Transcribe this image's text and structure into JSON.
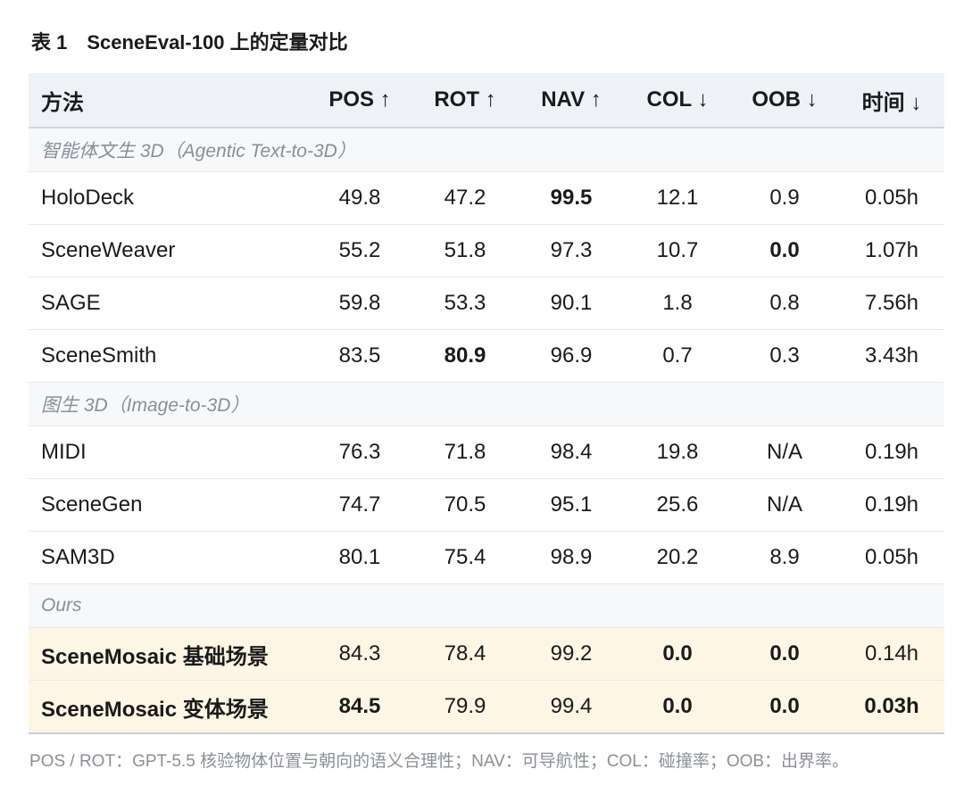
{
  "caption": "表 1　SceneEval-100 上的定量对比",
  "table": {
    "header": [
      "方法",
      "POS ↑",
      "ROT ↑",
      "NAV ↑",
      "COL ↓",
      "OOB ↓",
      "时间 ↓"
    ],
    "groups": [
      {
        "label": "智能体文生 3D（Agentic Text-to-3D）",
        "rows": [
          [
            "HoloDeck",
            "49.8",
            "47.2",
            "99.5",
            "12.1",
            "0.9",
            "0.05h"
          ],
          [
            "SceneWeaver",
            "55.2",
            "51.8",
            "97.3",
            "10.7",
            "0.0",
            "1.07h"
          ],
          [
            "SAGE",
            "59.8",
            "53.3",
            "90.1",
            "1.8",
            "0.8",
            "7.56h"
          ],
          [
            "SceneSmith",
            "83.5",
            "80.9",
            "96.9",
            "0.7",
            "0.3",
            "3.43h"
          ]
        ]
      },
      {
        "label": "图生 3D（Image-to-3D）",
        "rows": [
          [
            "MIDI",
            "76.3",
            "71.8",
            "98.4",
            "19.8",
            "N/A",
            "0.19h"
          ],
          [
            "SceneGen",
            "74.7",
            "70.5",
            "95.1",
            "25.6",
            "N/A",
            "0.19h"
          ],
          [
            "SAM3D",
            "80.1",
            "75.4",
            "98.9",
            "20.2",
            "8.9",
            "0.05h"
          ]
        ]
      },
      {
        "label": "Ours",
        "rows": [
          [
            "SceneMosaic 基础场景",
            "84.3",
            "78.4",
            "99.2",
            "0.0",
            "0.0",
            "0.14h"
          ],
          [
            "SceneMosaic 变体场景",
            "84.5",
            "79.9",
            "99.4",
            "0.0",
            "0.0",
            "0.03h"
          ]
        ]
      }
    ]
  },
  "footnote": "POS / ROT：GPT-5.5 核验物体位置与朝向的语义合理性；NAV：可导航性；COL：碰撞率；OOB：出界率。"
}
